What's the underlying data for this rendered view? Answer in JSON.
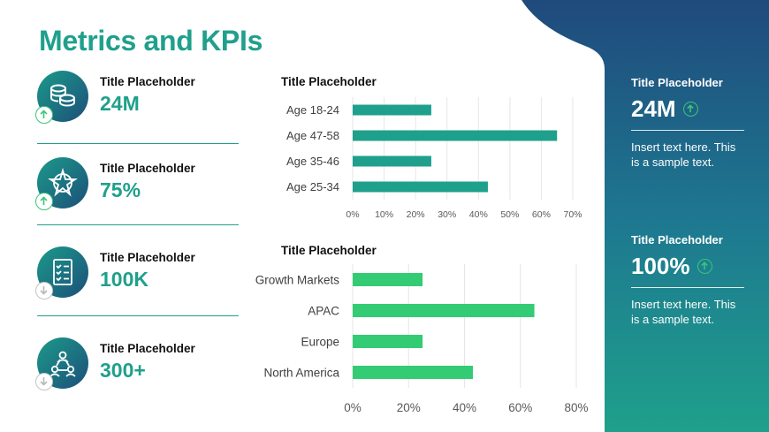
{
  "page_title": "Metrics and KPIs",
  "colors": {
    "accent": "#1fa08c",
    "panel_top": "#1f4a7c",
    "panel_bottom": "#1ea08b",
    "bar_age": "#1fa08c",
    "bar_region": "#33cc74",
    "up_arrow": "#3cc47a",
    "down_arrow": "#c4c4c4"
  },
  "kpis": [
    {
      "title": "Title Placeholder",
      "value": "24M",
      "icon": "coins-icon",
      "trend": "up"
    },
    {
      "title": "Title Placeholder",
      "value": "75%",
      "icon": "network-star-icon",
      "trend": "up"
    },
    {
      "title": "Title Placeholder",
      "value": "100K",
      "icon": "checklist-icon",
      "trend": "down"
    },
    {
      "title": "Title Placeholder",
      "value": "300+",
      "icon": "people-network-icon",
      "trend": "down"
    }
  ],
  "chart_data": [
    {
      "type": "bar",
      "orientation": "horizontal",
      "title": "Title Placeholder",
      "categories": [
        "Age 18-24",
        "Age 47-58",
        "Age 35-46",
        "Age 25-34"
      ],
      "values": [
        25,
        65,
        25,
        43
      ],
      "xlim": [
        0,
        70
      ],
      "ticks": [
        0,
        10,
        20,
        30,
        40,
        50,
        60,
        70
      ],
      "tick_labels": [
        "0%",
        "10%",
        "20%",
        "30%",
        "40%",
        "50%",
        "60%",
        "70%"
      ],
      "grid": true,
      "color": "#1fa08c"
    },
    {
      "type": "bar",
      "orientation": "horizontal",
      "title": "Title Placeholder",
      "categories": [
        "Growth Markets",
        "APAC",
        "Europe",
        "North America"
      ],
      "values": [
        25,
        65,
        25,
        43
      ],
      "xlim": [
        0,
        80
      ],
      "ticks": [
        0,
        20,
        40,
        60,
        80
      ],
      "tick_labels": [
        "0%",
        "20%",
        "40%",
        "60%",
        "80%"
      ],
      "grid": true,
      "color": "#33cc74"
    }
  ],
  "panel": [
    {
      "title": "Title Placeholder",
      "value": "24M",
      "trend": "up",
      "text": "Insert text here. This is a sample text."
    },
    {
      "title": "Title Placeholder",
      "value": "100%",
      "trend": "up",
      "text": "Insert text here. This is a sample text."
    }
  ]
}
